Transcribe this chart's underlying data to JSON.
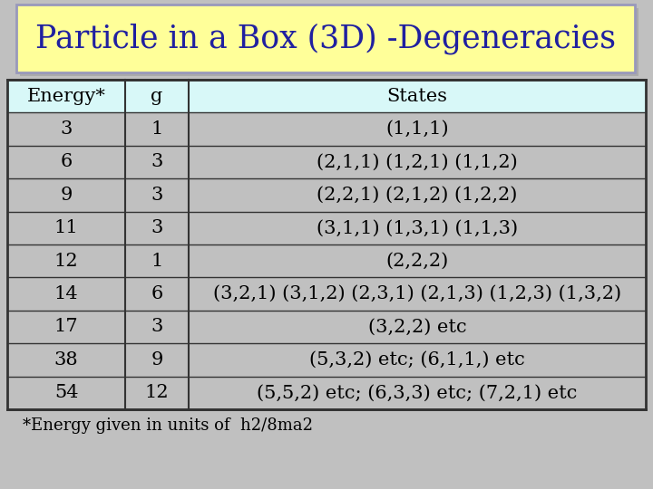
{
  "title": "Particle in a Box (3D) -Degeneracies",
  "title_bg": "#FFFF99",
  "title_border": "#9999BB",
  "title_shadow": "#AAAAAA",
  "table_bg": "#D8F8F8",
  "table_border": "#333333",
  "header": [
    "Energy*",
    "g",
    "States"
  ],
  "rows": [
    [
      "3",
      "1",
      "(1,1,1)"
    ],
    [
      "6",
      "3",
      "(2,1,1) (1,2,1) (1,1,2)"
    ],
    [
      "9",
      "3",
      "(2,2,1) (2,1,2) (1,2,2)"
    ],
    [
      "11",
      "3",
      "(3,1,1) (1,3,1) (1,1,3)"
    ],
    [
      "12",
      "1",
      "(2,2,2)"
    ],
    [
      "14",
      "6",
      "(3,2,1) (3,1,2) (2,3,1) (2,1,3) (1,2,3) (1,3,2)"
    ],
    [
      "17",
      "3",
      "(3,2,2) etc"
    ],
    [
      "38",
      "9",
      "(5,3,2) etc; (6,1,1,) etc"
    ],
    [
      "54",
      "12",
      "(5,5,2) etc; (6,3,3) etc; (7,2,1) etc"
    ]
  ],
  "footnote_plain": "*Energy given in units of  h",
  "footnote_super1": "2",
  "footnote_mid": "/8ma",
  "footnote_super2": "2",
  "bg_color": "#C0C0C0",
  "font_size_title": 25,
  "font_size_table": 15,
  "font_size_footnote": 13,
  "title_color": "#2020A0",
  "table_color": "#000000"
}
